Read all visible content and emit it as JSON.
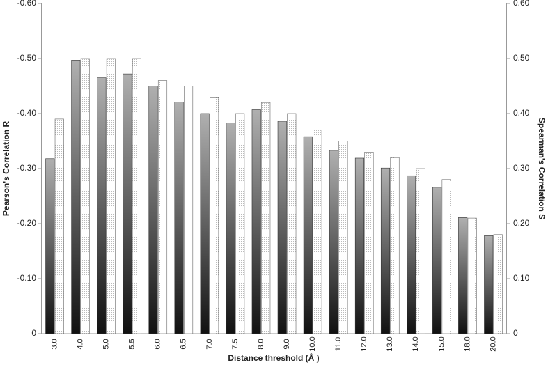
{
  "chart_data": {
    "type": "bar",
    "x_label": "Distance threshold (Å )",
    "y_label": "Pearson's Correlation R",
    "y2_label": "Spearman's Correlation S",
    "categories": [
      "3.0",
      "4.0",
      "5.0",
      "5.5",
      "6.0",
      "6.5",
      "7.0",
      "7.5",
      "8.0",
      "9.0",
      "10.0",
      "11.0",
      "12.0",
      "13.0",
      "14.0",
      "15.0",
      "18.0",
      "20.0"
    ],
    "series": [
      {
        "color": "#b0b0b0",
        "values": [
          -0.318,
          -0.497,
          -0.465,
          -0.472,
          -0.45,
          -0.421,
          -0.4,
          -0.383,
          -0.407,
          -0.386,
          -0.358,
          -0.333,
          -0.319,
          -0.301,
          -0.287,
          -0.266,
          -0.211,
          -0.178
        ]
      },
      {
        "color": "#ffffff",
        "axis": "y2",
        "values": [
          0.39,
          0.5,
          0.5,
          0.5,
          0.46,
          0.45,
          0.43,
          0.4,
          0.42,
          0.4,
          0.37,
          0.35,
          0.33,
          0.32,
          0.3,
          0.28,
          0.21,
          0.18
        ]
      }
    ],
    "ylim": [
      0,
      -0.6
    ],
    "yticks": [
      {
        "value": -0.6,
        "label": "-0.60"
      },
      {
        "value": -0.5,
        "label": "-0.50"
      },
      {
        "value": -0.4,
        "label": "-0.40"
      },
      {
        "value": -0.3,
        "label": "-0.30"
      },
      {
        "value": -0.2,
        "label": "-0.20"
      },
      {
        "value": -0.1,
        "label": "-0.10"
      },
      0
    ],
    "y2lim": [
      0,
      0.6
    ],
    "y2ticks": [
      {
        "value": 0.6,
        "label": "0.60"
      },
      {
        "value": 0.5,
        "label": "0.50"
      },
      {
        "value": 0.4,
        "label": "0.40"
      },
      {
        "value": 0.3,
        "label": "0.30"
      },
      {
        "value": 0.2,
        "label": "0.20"
      },
      {
        "value": 0.1,
        "label": "0.10"
      },
      0
    ]
  }
}
